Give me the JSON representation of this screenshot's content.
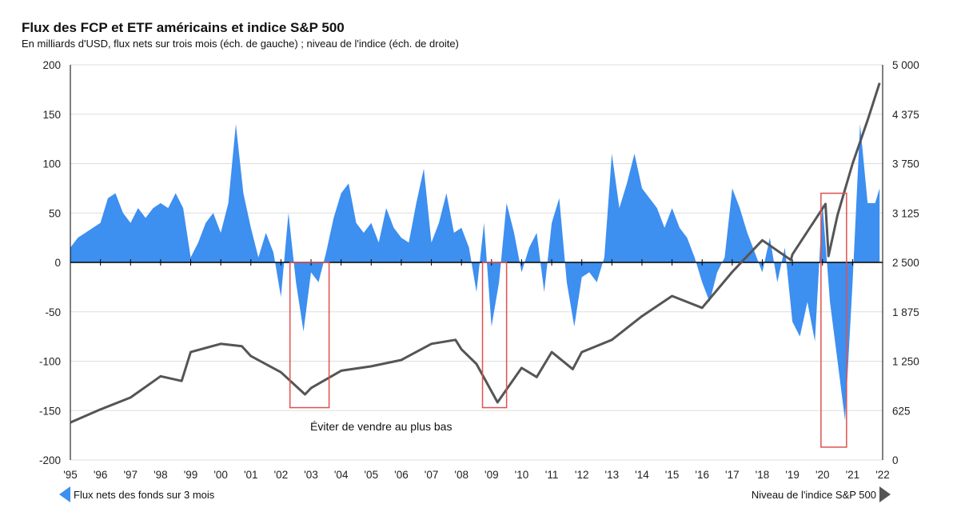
{
  "chart_data": {
    "type": "area+line",
    "title": "Flux des FCP et ETF américains et indice S&P 500",
    "subtitle": "En milliards d'USD, flux nets sur trois mois (éch. de gauche) ; niveau de l'indice (éch. de droite)",
    "x_ticks": [
      "'95",
      "'96",
      "'97",
      "'98",
      "'99",
      "'00",
      "'01",
      "'02",
      "'03",
      "'04",
      "'05",
      "'06",
      "'07",
      "'08",
      "'09",
      "'10",
      "'11",
      "'12",
      "'13",
      "'14",
      "'15",
      "'16",
      "'17",
      "'18",
      "'19",
      "'20",
      "'21",
      "'22"
    ],
    "y_left": {
      "range": [
        -200,
        200
      ],
      "ticks": [
        "200",
        "150",
        "100",
        "50",
        "0",
        "-50",
        "-100",
        "-150",
        "-200"
      ]
    },
    "y_right": {
      "range": [
        0,
        5000
      ],
      "ticks": [
        "5 000",
        "4 375",
        "3 750",
        "3 125",
        "2 500",
        "1 875",
        "1 250",
        "625",
        "0"
      ]
    },
    "x_range": [
      1995,
      2022
    ],
    "series": [
      {
        "name": "Flux nets des fonds sur 3 mois",
        "type": "area",
        "axis": "left",
        "color": "#3d8ff0",
        "x": [
          1995,
          1995.25,
          1995.5,
          1995.75,
          1996,
          1996.25,
          1996.5,
          1996.75,
          1997,
          1997.25,
          1997.5,
          1997.75,
          1998,
          1998.25,
          1998.5,
          1998.75,
          1999,
          1999.25,
          1999.5,
          1999.75,
          2000,
          2000.25,
          2000.5,
          2000.75,
          2001,
          2001.25,
          2001.5,
          2001.75,
          2002,
          2002.25,
          2002.5,
          2002.75,
          2003,
          2003.25,
          2003.5,
          2003.75,
          2004,
          2004.25,
          2004.5,
          2004.75,
          2005,
          2005.25,
          2005.5,
          2005.75,
          2006,
          2006.25,
          2006.5,
          2006.75,
          2007,
          2007.25,
          2007.5,
          2007.75,
          2008,
          2008.25,
          2008.5,
          2008.75,
          2009,
          2009.25,
          2009.5,
          2009.75,
          2010,
          2010.25,
          2010.5,
          2010.75,
          2011,
          2011.25,
          2011.5,
          2011.75,
          2012,
          2012.25,
          2012.5,
          2012.75,
          2013,
          2013.25,
          2013.5,
          2013.75,
          2014,
          2014.25,
          2014.5,
          2014.75,
          2015,
          2015.25,
          2015.5,
          2015.75,
          2016,
          2016.25,
          2016.5,
          2016.75,
          2017,
          2017.25,
          2017.5,
          2017.75,
          2018,
          2018.25,
          2018.5,
          2018.75,
          2019,
          2019.25,
          2019.5,
          2019.75,
          2020,
          2020.25,
          2020.5,
          2020.75,
          2021,
          2021.25,
          2021.5,
          2021.75,
          2021.9
        ],
        "values": [
          15,
          25,
          30,
          35,
          40,
          65,
          70,
          50,
          40,
          55,
          45,
          55,
          60,
          55,
          70,
          55,
          5,
          20,
          40,
          50,
          30,
          60,
          140,
          70,
          35,
          5,
          30,
          10,
          -35,
          50,
          -20,
          -70,
          -10,
          -20,
          10,
          45,
          70,
          80,
          40,
          30,
          40,
          20,
          55,
          35,
          25,
          20,
          60,
          95,
          20,
          40,
          70,
          30,
          35,
          15,
          -30,
          40,
          -65,
          -20,
          60,
          30,
          -10,
          15,
          30,
          -30,
          40,
          65,
          -20,
          -65,
          -15,
          -10,
          -20,
          5,
          110,
          55,
          80,
          110,
          75,
          65,
          55,
          35,
          55,
          35,
          25,
          5,
          -20,
          -40,
          -10,
          5,
          75,
          55,
          30,
          10,
          -10,
          25,
          -20,
          15,
          -60,
          -75,
          -40,
          -80,
          60,
          -40,
          -100,
          -160,
          -20,
          140,
          60,
          60,
          75
        ]
      },
      {
        "name": "Niveau de l'indice S&P 500",
        "type": "line",
        "axis": "right",
        "color": "#555555",
        "x": [
          1995,
          1996,
          1997,
          1998,
          1998.7,
          1999,
          2000,
          2000.7,
          2001,
          2002,
          2002.8,
          2003,
          2004,
          2005,
          2006,
          2007,
          2007.8,
          2008,
          2008.5,
          2009.2,
          2010,
          2010.5,
          2011,
          2011.7,
          2012,
          2013,
          2014,
          2015,
          2016,
          2017,
          2018,
          2018.95,
          2019,
          2020.1,
          2020.2,
          2020.5,
          2021,
          2021.5,
          2021.9
        ],
        "values": [
          475,
          640,
          790,
          1060,
          1000,
          1365,
          1470,
          1440,
          1315,
          1110,
          830,
          910,
          1130,
          1185,
          1265,
          1470,
          1520,
          1400,
          1215,
          730,
          1165,
          1050,
          1365,
          1150,
          1365,
          1520,
          1820,
          2075,
          1925,
          2380,
          2780,
          2530,
          2600,
          3240,
          2580,
          3100,
          3750,
          4300,
          4770
        ]
      }
    ],
    "annotations": [
      {
        "text": "Éviter de vendre au plus bas"
      },
      {
        "box": {
          "x": [
            2002.3,
            2003.6
          ],
          "y": [
            0,
            -147
          ]
        }
      },
      {
        "box": {
          "x": [
            2008.7,
            2009.5
          ],
          "y": [
            0,
            -147
          ]
        }
      },
      {
        "box": {
          "x": [
            2019.95,
            2020.8
          ],
          "y": [
            70,
            -187
          ]
        }
      }
    ],
    "legend": [
      {
        "label": "Flux nets des fonds sur 3 mois",
        "position": "bottom-left"
      },
      {
        "label": "Niveau de l'indice S&P 500",
        "position": "bottom-right"
      }
    ]
  }
}
